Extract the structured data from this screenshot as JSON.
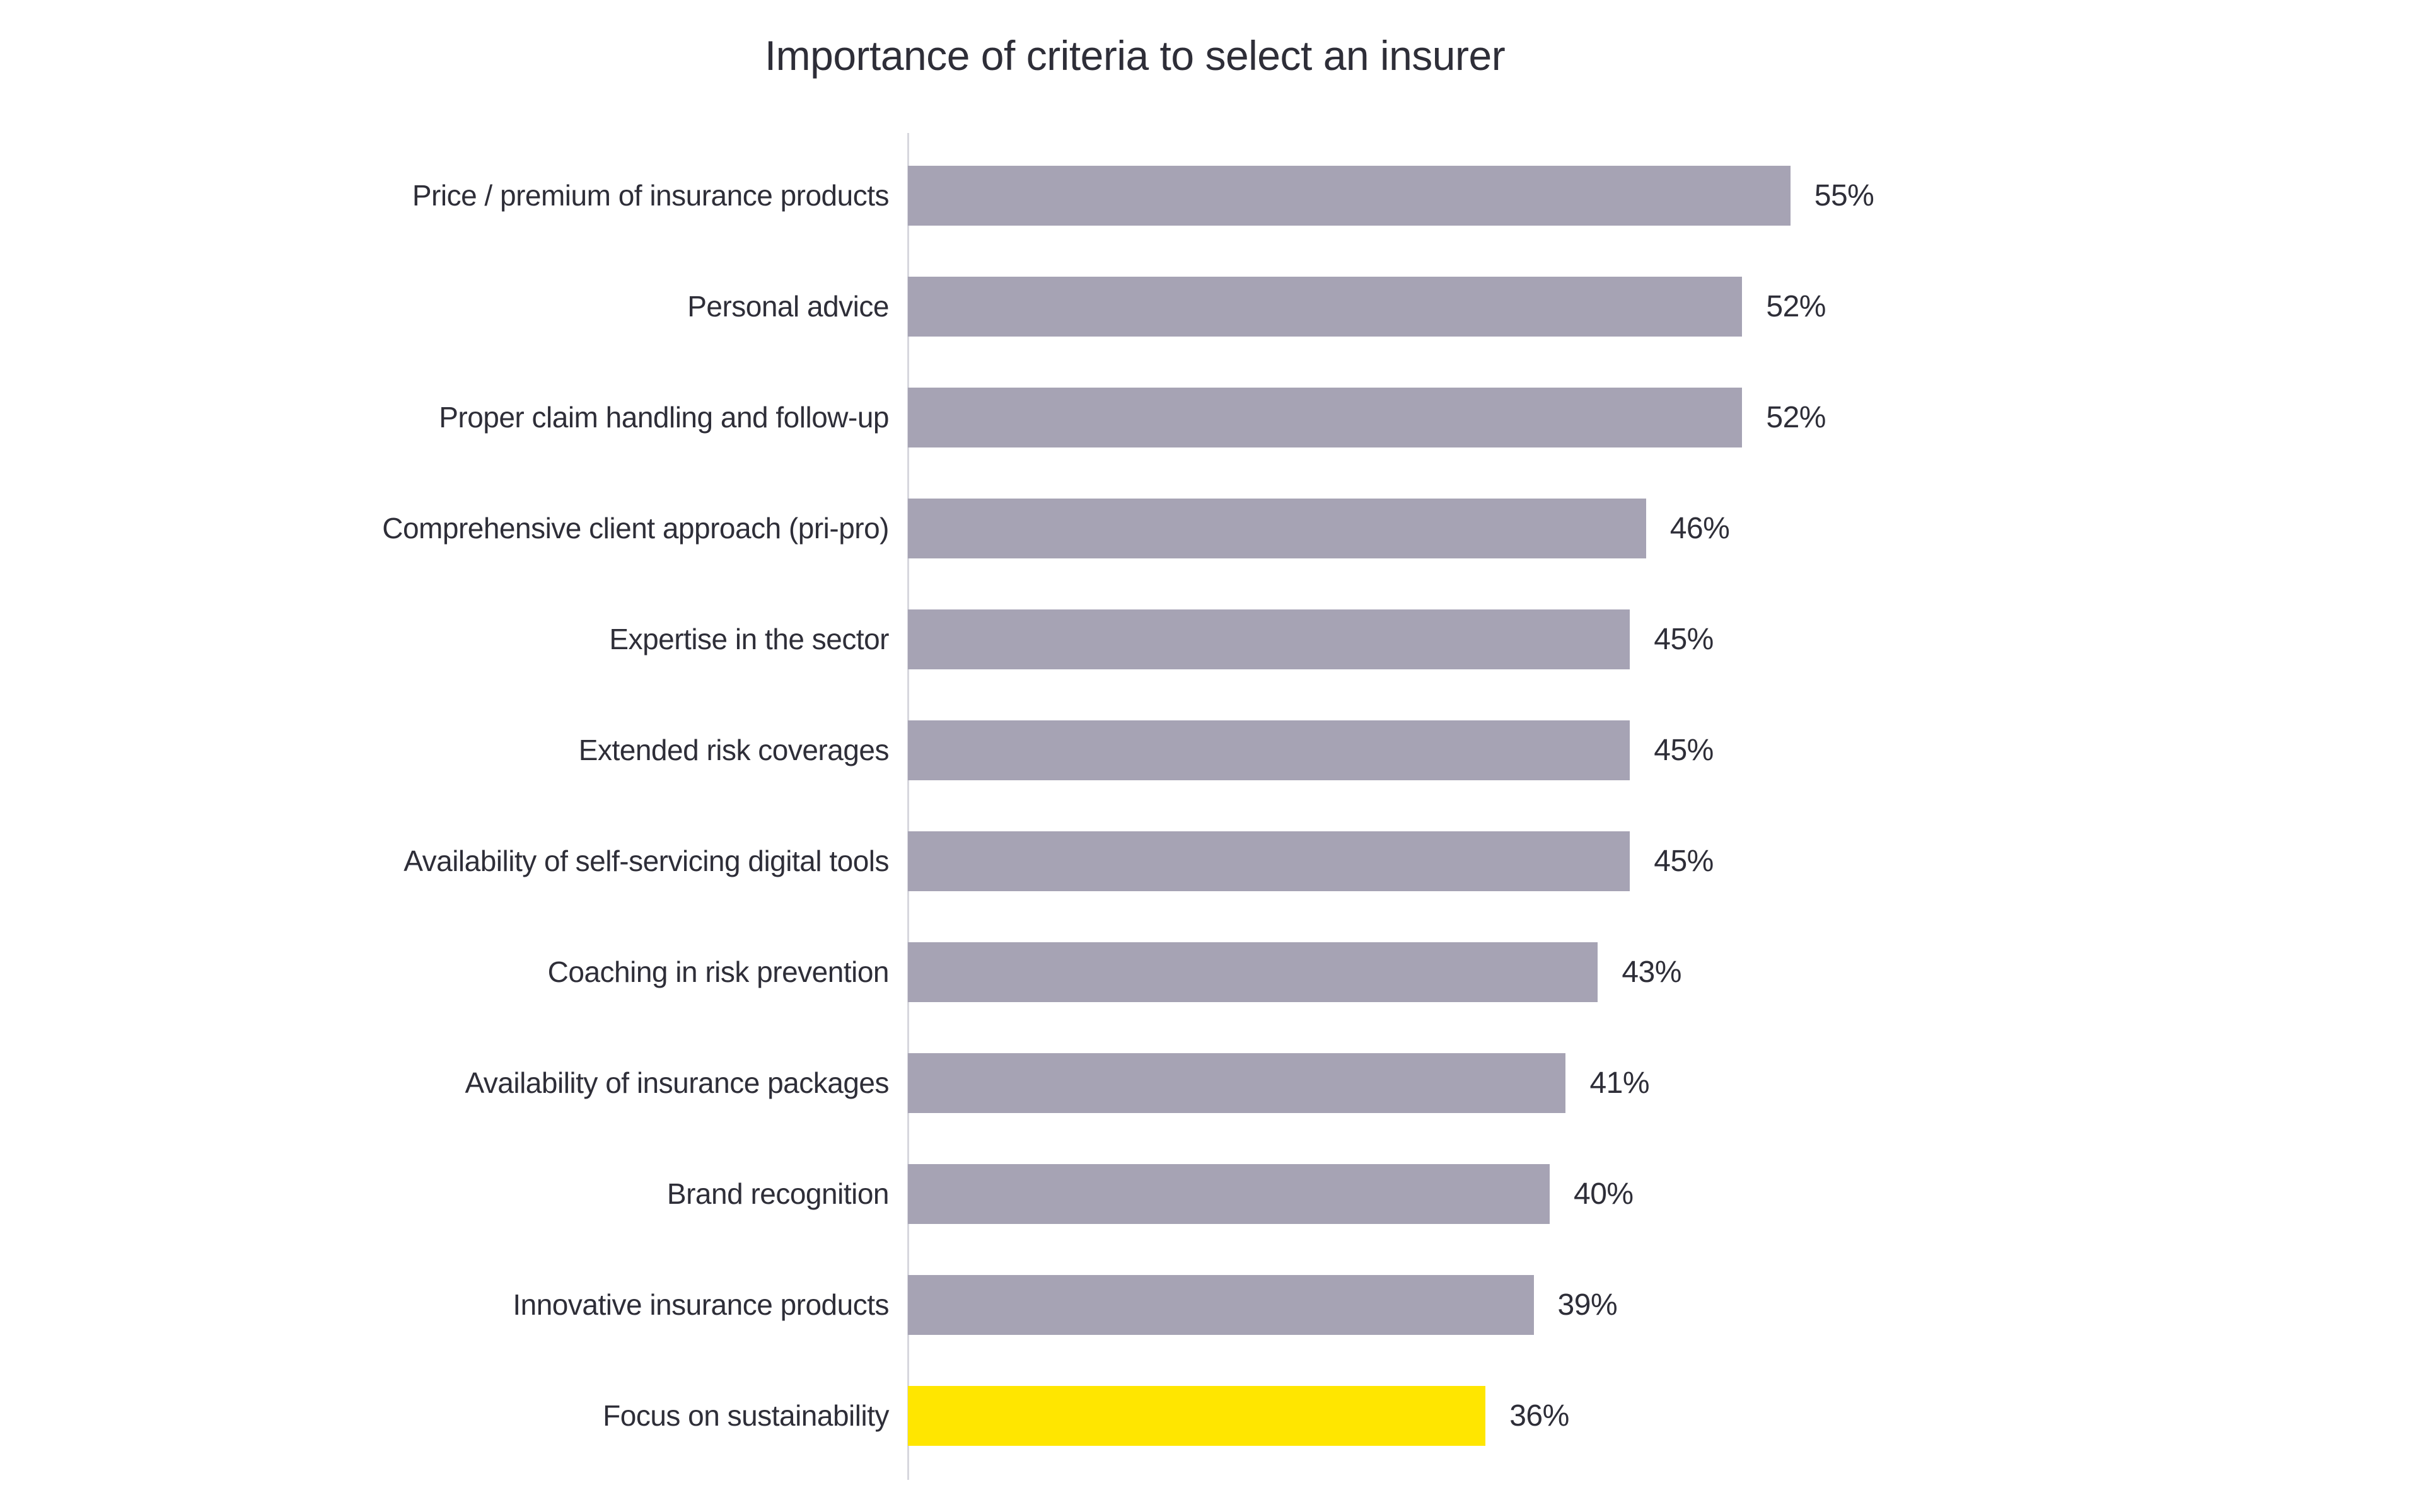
{
  "title": "Importance of criteria to select an insurer",
  "chart_data": {
    "type": "bar",
    "orientation": "horizontal",
    "title": "Importance of criteria to select an insurer",
    "categories": [
      "Price / premium of insurance products",
      "Personal advice",
      "Proper claim handling and follow-up",
      "Comprehensive client approach (pri-pro)",
      "Expertise in the sector",
      "Extended risk coverages",
      "Availability of self-servicing digital tools",
      "Coaching in risk prevention",
      "Availability of insurance packages",
      "Brand recognition",
      "Innovative insurance products",
      "Focus on sustainability"
    ],
    "values": [
      55,
      52,
      52,
      46,
      45,
      45,
      45,
      43,
      41,
      40,
      39,
      36
    ],
    "value_labels": [
      "55%",
      "52%",
      "52%",
      "46%",
      "45%",
      "45%",
      "45%",
      "43%",
      "41%",
      "40%",
      "39%",
      "36%"
    ],
    "highlight_index": 11,
    "xlabel": "",
    "ylabel": "",
    "xlim": [
      0,
      60
    ],
    "grid": false,
    "legend": false,
    "colors": {
      "bar": "#a6a3b4",
      "highlight": "#ffe600",
      "text": "#2e2e38",
      "axis": "#d7d7de"
    }
  }
}
